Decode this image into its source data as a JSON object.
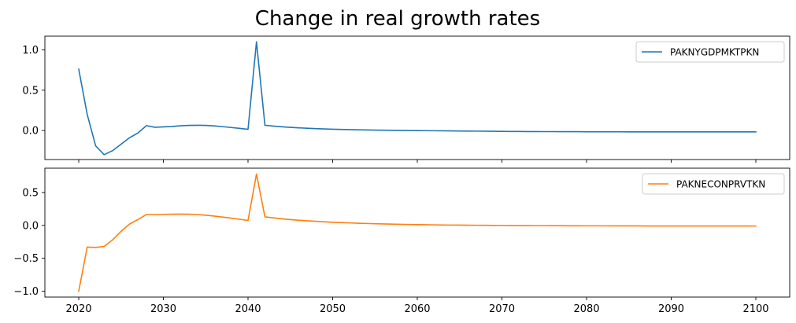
{
  "title": "Change in real growth rates",
  "chart_data": [
    {
      "type": "line",
      "series": [
        {
          "name": "PAKNYGDPMKTPKN",
          "color": "#1f77b4",
          "x": [
            2020,
            2021,
            2022,
            2023,
            2024,
            2025,
            2026,
            2027,
            2028,
            2029,
            2030,
            2031,
            2032,
            2033,
            2034,
            2035,
            2036,
            2037,
            2038,
            2039,
            2040,
            2041,
            2042,
            2043,
            2044,
            2045,
            2046,
            2047,
            2048,
            2049,
            2050,
            2051,
            2052,
            2053,
            2054,
            2055,
            2056,
            2057,
            2058,
            2059,
            2060,
            2061,
            2062,
            2063,
            2064,
            2065,
            2066,
            2067,
            2068,
            2069,
            2070,
            2071,
            2072,
            2073,
            2074,
            2075,
            2076,
            2077,
            2078,
            2079,
            2080,
            2081,
            2082,
            2083,
            2084,
            2085,
            2086,
            2087,
            2088,
            2089,
            2090,
            2091,
            2092,
            2093,
            2094,
            2095,
            2096,
            2097,
            2098,
            2099,
            2100
          ],
          "y": [
            0.76,
            0.2,
            -0.19,
            -0.3,
            -0.25,
            -0.17,
            -0.09,
            -0.03,
            0.06,
            0.04,
            0.045,
            0.05,
            0.058,
            0.063,
            0.065,
            0.063,
            0.057,
            0.048,
            0.037,
            0.027,
            0.015,
            1.1,
            0.065,
            0.055,
            0.046,
            0.039,
            0.033,
            0.028,
            0.023,
            0.019,
            0.016,
            0.013,
            0.011,
            0.009,
            0.007,
            0.005,
            0.004,
            0.002,
            0.001,
            0.0,
            -0.001,
            -0.002,
            -0.003,
            -0.004,
            -0.005,
            -0.006,
            -0.007,
            -0.008,
            -0.009,
            -0.01,
            -0.011,
            -0.012,
            -0.012,
            -0.013,
            -0.013,
            -0.014,
            -0.014,
            -0.015,
            -0.015,
            -0.015,
            -0.016,
            -0.016,
            -0.016,
            -0.016,
            -0.016,
            -0.017,
            -0.017,
            -0.017,
            -0.017,
            -0.017,
            -0.017,
            -0.017,
            -0.017,
            -0.017,
            -0.017,
            -0.017,
            -0.017,
            -0.017,
            -0.017,
            -0.017,
            -0.017
          ]
        }
      ],
      "ylim": [
        -0.36,
        1.17
      ],
      "yticks": [
        -0.0,
        0.5,
        1.0
      ],
      "ytick_labels": [
        "0.0",
        "0.5",
        "1.0"
      ],
      "xlim": [
        2016,
        2104
      ],
      "xticks": [
        2020,
        2030,
        2040,
        2050,
        2060,
        2070,
        2080,
        2090,
        2100
      ],
      "xtick_labels": [],
      "legend": "top-right"
    },
    {
      "type": "line",
      "series": [
        {
          "name": "PAKNECONPRVTKN",
          "color": "#ff7f0e",
          "x": [
            2020,
            2021,
            2022,
            2023,
            2024,
            2025,
            2026,
            2027,
            2028,
            2029,
            2030,
            2031,
            2032,
            2033,
            2034,
            2035,
            2036,
            2037,
            2038,
            2039,
            2040,
            2041,
            2042,
            2043,
            2044,
            2045,
            2046,
            2047,
            2048,
            2049,
            2050,
            2051,
            2052,
            2053,
            2054,
            2055,
            2056,
            2057,
            2058,
            2059,
            2060,
            2061,
            2062,
            2063,
            2064,
            2065,
            2066,
            2067,
            2068,
            2069,
            2070,
            2071,
            2072,
            2073,
            2074,
            2075,
            2076,
            2077,
            2078,
            2079,
            2080,
            2081,
            2082,
            2083,
            2084,
            2085,
            2086,
            2087,
            2088,
            2089,
            2090,
            2091,
            2092,
            2093,
            2094,
            2095,
            2096,
            2097,
            2098,
            2099,
            2100
          ],
          "y": [
            -1.0,
            -0.33,
            -0.335,
            -0.32,
            -0.22,
            -0.09,
            0.02,
            0.09,
            0.165,
            0.165,
            0.168,
            0.17,
            0.172,
            0.17,
            0.165,
            0.155,
            0.142,
            0.127,
            0.11,
            0.093,
            0.075,
            0.78,
            0.13,
            0.115,
            0.1,
            0.088,
            0.078,
            0.07,
            0.062,
            0.055,
            0.048,
            0.043,
            0.038,
            0.033,
            0.029,
            0.025,
            0.022,
            0.019,
            0.016,
            0.014,
            0.012,
            0.01,
            0.008,
            0.006,
            0.005,
            0.004,
            0.003,
            0.002,
            0.001,
            0.0,
            -0.001,
            -0.002,
            -0.003,
            -0.003,
            -0.004,
            -0.004,
            -0.005,
            -0.005,
            -0.006,
            -0.006,
            -0.007,
            -0.007,
            -0.007,
            -0.008,
            -0.008,
            -0.008,
            -0.008,
            -0.009,
            -0.009,
            -0.009,
            -0.009,
            -0.009,
            -0.009,
            -0.009,
            -0.009,
            -0.009,
            -0.009,
            -0.009,
            -0.009,
            -0.009,
            -0.01
          ]
        }
      ],
      "ylim": [
        -1.09,
        0.87
      ],
      "yticks": [
        -1.0,
        -0.5,
        0.0,
        0.5
      ],
      "ytick_labels": [
        "−1.0",
        "−0.5",
        "0.0",
        "0.5"
      ],
      "xlim": [
        2016,
        2104
      ],
      "xticks": [
        2020,
        2030,
        2040,
        2050,
        2060,
        2070,
        2080,
        2090,
        2100
      ],
      "xtick_labels": [
        "2020",
        "2030",
        "2040",
        "2050",
        "2060",
        "2070",
        "2080",
        "2090",
        "2100"
      ],
      "legend": "top-right"
    }
  ]
}
